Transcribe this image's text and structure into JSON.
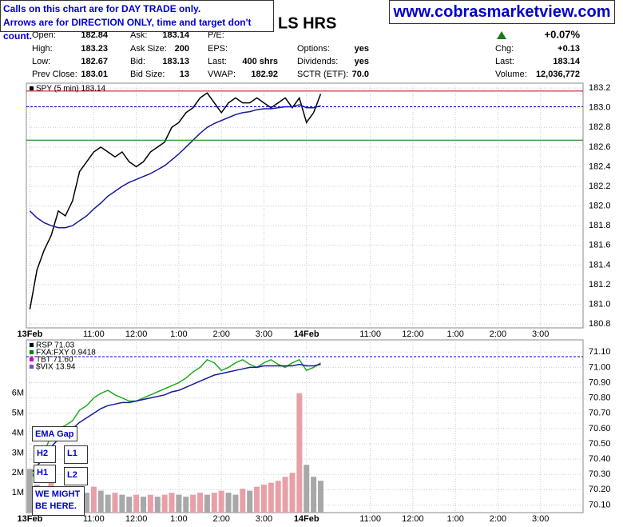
{
  "header": {
    "notice": [
      "Calls on this chart are for DAY TRADE only.",
      "Arrows are for DIRECTION ONLY, time and target don't count."
    ],
    "site": "www.cobrasmarketview.com",
    "title": "LS HRS",
    "change_pct": "+0.07%",
    "quote_rows": [
      [
        {
          "label": "Open:",
          "value": "182.84"
        },
        {
          "label": "Ask:",
          "value": "183.14"
        },
        {
          "label": "P/E:"
        },
        null,
        null
      ],
      [
        {
          "label": "High:",
          "value": "183.23"
        },
        {
          "label": "Ask Size:",
          "value": "200"
        },
        {
          "label": "EPS:"
        },
        {
          "label": "Options:",
          "value": "yes"
        },
        {
          "label": "Chg:",
          "value": "+0.13"
        }
      ],
      [
        {
          "label": "Low:",
          "value": "182.67"
        },
        {
          "label": "Bid:",
          "value": "183.13"
        },
        {
          "label": "Last:",
          "value": "400 shrs"
        },
        {
          "label": "Dividends:",
          "value": "yes"
        },
        {
          "label": "Last:",
          "value": "183.14"
        }
      ],
      [
        {
          "label": "Prev Close:",
          "value": "183.01"
        },
        {
          "label": "Bid Size:",
          "value": "13"
        },
        {
          "label": "VWAP:",
          "value": "182.92"
        },
        {
          "label": "SCTR (ETF):",
          "value": "70.0"
        },
        {
          "label": "Volume:",
          "value": "12,036,772"
        }
      ]
    ]
  },
  "chart_data": [
    {
      "type": "line",
      "legend": [
        {
          "name": "SPY (5 min) 183.14",
          "color": "#000000"
        }
      ],
      "x": [
        0,
        2,
        4,
        6,
        8,
        10,
        12,
        14,
        16,
        18,
        20,
        22,
        24,
        26,
        28,
        30,
        32,
        34,
        36,
        38,
        40,
        42,
        44,
        46,
        48,
        50,
        52,
        54,
        56,
        58,
        60,
        62,
        64,
        66,
        68,
        70,
        72,
        74,
        76,
        78,
        80,
        82
      ],
      "series": [
        {
          "color": "#000000",
          "values": [
            180.95,
            181.35,
            181.55,
            181.7,
            181.95,
            181.9,
            182.05,
            182.35,
            182.45,
            182.55,
            182.6,
            182.55,
            182.5,
            182.55,
            182.45,
            182.4,
            182.45,
            182.55,
            182.6,
            182.65,
            182.8,
            182.85,
            182.95,
            183.0,
            183.1,
            183.15,
            183.05,
            182.95,
            183.05,
            183.1,
            183.05,
            183.05,
            183.1,
            183.05,
            183.0,
            183.05,
            183.1,
            183.0,
            183.1,
            182.85,
            182.95,
            183.14
          ]
        },
        {
          "color": "#1a1a9a",
          "values": [
            181.95,
            181.88,
            181.83,
            181.8,
            181.78,
            181.78,
            181.8,
            181.85,
            181.9,
            181.97,
            182.03,
            182.1,
            182.15,
            182.2,
            182.24,
            182.27,
            182.3,
            182.33,
            182.37,
            182.41,
            182.47,
            182.53,
            182.6,
            182.67,
            182.74,
            182.8,
            182.84,
            182.87,
            182.9,
            182.93,
            182.95,
            182.96,
            182.98,
            182.99,
            182.99,
            183.0,
            183.01,
            183.01,
            183.03,
            183.0,
            183.0,
            183.02
          ]
        }
      ],
      "hlines": [
        {
          "value": 183.17,
          "color": "#cc0000"
        },
        {
          "value": 183.01,
          "color": "#0000cc",
          "dashed": true
        },
        {
          "value": 182.67,
          "color": "#007700"
        }
      ],
      "xlim": [
        -1,
        156
      ],
      "xticks": [
        {
          "value": 0,
          "label": "13Feb"
        },
        {
          "value": 18,
          "label": "11:00"
        },
        {
          "value": 30,
          "label": "12:00"
        },
        {
          "value": 42,
          "label": "1:00"
        },
        {
          "value": 54,
          "label": "2:00"
        },
        {
          "value": 66,
          "label": "3:00"
        },
        {
          "value": 78,
          "label": "14Feb"
        },
        {
          "value": 96,
          "label": "11:00"
        },
        {
          "value": 108,
          "label": "12:00"
        },
        {
          "value": 120,
          "label": "1:00"
        },
        {
          "value": 132,
          "label": "2:00"
        },
        {
          "value": 144,
          "label": "3:00"
        }
      ],
      "ylim": [
        180.76,
        183.25
      ],
      "yticks": [
        {
          "value": 180.8,
          "label": "180.8"
        },
        {
          "value": 181,
          "label": "181.0"
        },
        {
          "value": 181.2,
          "label": "181.2"
        },
        {
          "value": 181.4,
          "label": "181.4"
        },
        {
          "value": 181.6,
          "label": "181.6"
        },
        {
          "value": 181.8,
          "label": "181.8"
        },
        {
          "value": 182,
          "label": "182.0"
        },
        {
          "value": 182.2,
          "label": "182.2"
        },
        {
          "value": 182.4,
          "label": "182.4"
        },
        {
          "value": 182.6,
          "label": "182.6"
        },
        {
          "value": 182.8,
          "label": "182.8"
        },
        {
          "value": 183,
          "label": "183.0"
        },
        {
          "value": 183.2,
          "label": "183.2"
        }
      ],
      "grid": true
    },
    {
      "type": "line",
      "legend": [
        {
          "name": "RSP 71.03",
          "color": "#000000"
        },
        {
          "name": "FXA:FXY 0.9418",
          "color": "#008800"
        },
        {
          "name": "TBT 71.60",
          "color": "#dd00aa"
        },
        {
          "name": "$VIX 13.94",
          "color": "#8844cc"
        }
      ],
      "x": [
        0,
        2,
        4,
        6,
        8,
        10,
        12,
        14,
        16,
        18,
        20,
        22,
        24,
        26,
        28,
        30,
        32,
        34,
        36,
        38,
        40,
        42,
        44,
        46,
        48,
        50,
        52,
        54,
        56,
        58,
        60,
        62,
        64,
        66,
        68,
        70,
        72,
        74,
        76,
        78,
        80,
        82
      ],
      "series": [
        {
          "color": "#22aa22",
          "values": [
            70.25,
            70.35,
            70.45,
            70.55,
            70.6,
            70.62,
            70.65,
            70.72,
            70.75,
            70.8,
            70.83,
            70.85,
            70.82,
            70.8,
            70.78,
            70.78,
            70.8,
            70.82,
            70.84,
            70.86,
            70.88,
            70.9,
            70.93,
            70.97,
            71.0,
            71.05,
            71.03,
            70.98,
            71.0,
            71.03,
            71.05,
            71.02,
            71.0,
            71.03,
            71.05,
            71.02,
            71.0,
            71.03,
            71.05,
            70.98,
            71.0,
            71.03
          ]
        },
        {
          "color": "#1a1a9a",
          "values": [
            70.3,
            70.35,
            70.42,
            70.48,
            70.53,
            70.57,
            70.6,
            70.64,
            70.67,
            70.7,
            70.73,
            70.75,
            70.76,
            70.77,
            70.77,
            70.78,
            70.79,
            70.8,
            70.81,
            70.82,
            70.84,
            70.85,
            70.87,
            70.89,
            70.91,
            70.93,
            70.95,
            70.96,
            70.97,
            70.98,
            70.99,
            71.0,
            71.0,
            71.01,
            71.01,
            71.01,
            71.01,
            71.01,
            71.02,
            71.01,
            71.01,
            71.02
          ]
        },
        {
          "type": "bar",
          "axis": "y2",
          "color": "#a8a8a8",
          "values": [
            2200000,
            1400000,
            1200000,
            1500000,
            1300000,
            1000000,
            1200000,
            1100000,
            1000000,
            1300000,
            1100000,
            900000,
            1000000,
            900000,
            800000,
            900000,
            800000,
            900000,
            800000,
            900000,
            1000000,
            900000,
            800000,
            900000,
            1000000,
            900000,
            1000000,
            1100000,
            1000000,
            900000,
            1200000,
            1100000,
            1300000,
            1400000,
            1500000,
            1600000,
            1800000,
            2000000,
            6000000,
            2400000,
            1800000,
            1600000
          ]
        }
      ],
      "hlines": [
        {
          "value": 71.07,
          "color": "#0000cc",
          "dashed": true
        }
      ],
      "xlim": [
        -1,
        156
      ],
      "xticks": [
        {
          "value": 0,
          "label": "13Feb"
        },
        {
          "value": 18,
          "label": "11:00"
        },
        {
          "value": 30,
          "label": "12:00"
        },
        {
          "value": 42,
          "label": "1:00"
        },
        {
          "value": 54,
          "label": "2:00"
        },
        {
          "value": 66,
          "label": "3:00"
        },
        {
          "value": 78,
          "label": "14Feb"
        },
        {
          "value": 96,
          "label": "11:00"
        },
        {
          "value": 108,
          "label": "12:00"
        },
        {
          "value": 120,
          "label": "1:00"
        },
        {
          "value": 132,
          "label": "2:00"
        },
        {
          "value": 144,
          "label": "3:00"
        }
      ],
      "ylim": [
        70.05,
        71.18
      ],
      "yticks": [
        {
          "value": 70.1,
          "label": "70.10"
        },
        {
          "value": 70.2,
          "label": "70.20"
        },
        {
          "value": 70.3,
          "label": "70.30"
        },
        {
          "value": 70.4,
          "label": "70.40"
        },
        {
          "value": 70.5,
          "label": "70.50"
        },
        {
          "value": 70.6,
          "label": "70.60"
        },
        {
          "value": 70.7,
          "label": "70.70"
        },
        {
          "value": 70.8,
          "label": "70.80"
        },
        {
          "value": 70.9,
          "label": "70.90"
        },
        {
          "value": 71,
          "label": "71.00"
        },
        {
          "value": 71.1,
          "label": "71.10"
        }
      ],
      "y2lim": [
        0,
        8680000
      ],
      "y2ticks": [
        {
          "value": 1000000,
          "label": "1M"
        },
        {
          "value": 2000000,
          "label": "2M"
        },
        {
          "value": 3000000,
          "label": "3M"
        },
        {
          "value": 4000000,
          "label": "4M"
        },
        {
          "value": 5000000,
          "label": "5M"
        },
        {
          "value": 6000000,
          "label": "6M"
        }
      ],
      "grid": true,
      "annotations": [
        {
          "text": "EMA Gap"
        },
        {
          "text": "H2"
        },
        {
          "text": "L1"
        },
        {
          "text": "H1"
        },
        {
          "text": "L2"
        },
        {
          "text": "WE MIGHT BE HERE."
        }
      ]
    }
  ]
}
